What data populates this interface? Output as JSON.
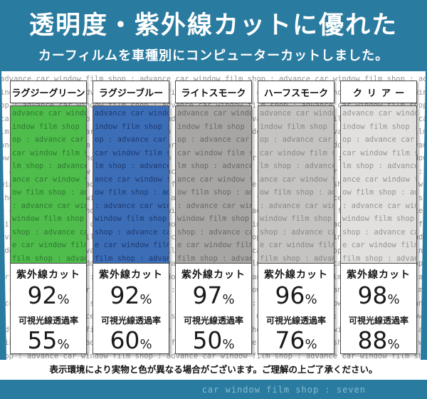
{
  "header": {
    "title": "透明度・紫外線カットに優れた",
    "subtitle": "カーフィルムを車種別にコンピューターカットしました。"
  },
  "watermark": {
    "phrase": "advance car window film shop : "
  },
  "labels": {
    "uv": "紫外線カット",
    "vlt": "可視光線透過率"
  },
  "units": {
    "percent": "%"
  },
  "products": [
    {
      "name": "ラグジーグリーン",
      "uv_cut": "92",
      "vlt": "55",
      "film_color": "#4fbd4c",
      "film_text_color": "#2e7a30"
    },
    {
      "name": "ラグジーブルー",
      "uv_cut": "92",
      "vlt": "60",
      "film_color": "#3c6eb8",
      "film_text_color": "#1e3a70"
    },
    {
      "name": "ライトスモーク",
      "uv_cut": "97",
      "vlt": "50",
      "film_color": "#a8a6a4",
      "film_text_color": "#6b6967"
    },
    {
      "name": "ハーフスモーク",
      "uv_cut": "96",
      "vlt": "76",
      "film_color": "#c6c4c2",
      "film_text_color": "#8a8886"
    },
    {
      "name": "クリアー",
      "uv_cut": "98",
      "vlt": "88",
      "film_color": "#e2e0de",
      "film_text_color": "#969492"
    }
  ],
  "disclaimer": "表示環境により実物と色が異なる場合がございます。ご理解の上ご了承ください。",
  "footer": {
    "text": "car window film shop : seven"
  },
  "colors": {
    "accent": "#2a7ba0",
    "footer_text": "#85bcd2",
    "watermark_text": "#949494",
    "box_border": "#4a4a4a"
  }
}
